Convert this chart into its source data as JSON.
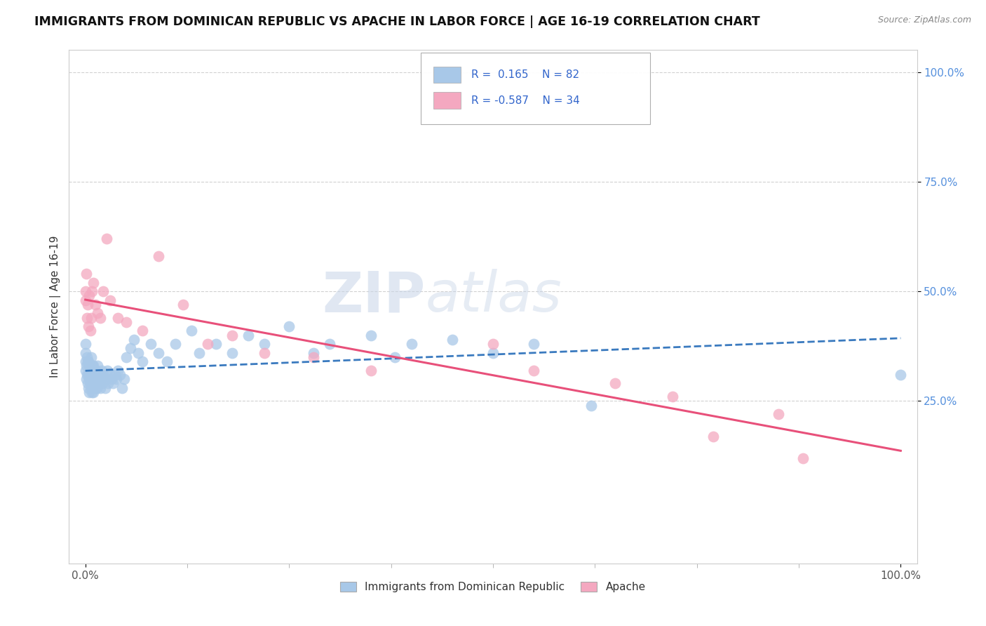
{
  "title": "IMMIGRANTS FROM DOMINICAN REPUBLIC VS APACHE IN LABOR FORCE | AGE 16-19 CORRELATION CHART",
  "source": "Source: ZipAtlas.com",
  "ylabel": "In Labor Force | Age 16-19",
  "xlim": [
    -0.02,
    1.02
  ],
  "ylim": [
    -0.12,
    1.05
  ],
  "blue_R": 0.165,
  "blue_N": 82,
  "pink_R": -0.587,
  "pink_N": 34,
  "blue_color": "#a8c8e8",
  "pink_color": "#f4a8c0",
  "blue_line_color": "#3a7abf",
  "pink_line_color": "#e8507a",
  "watermark_zip_color": "#c8d5e8",
  "watermark_atlas_color": "#c8d5e8",
  "grid_color": "#cccccc",
  "background_color": "#ffffff",
  "blue_scatter_x": [
    0.0,
    0.0,
    0.0,
    0.0,
    0.001,
    0.001,
    0.002,
    0.002,
    0.003,
    0.003,
    0.004,
    0.004,
    0.004,
    0.005,
    0.005,
    0.005,
    0.006,
    0.006,
    0.007,
    0.007,
    0.007,
    0.008,
    0.008,
    0.009,
    0.009,
    0.01,
    0.01,
    0.01,
    0.011,
    0.012,
    0.012,
    0.013,
    0.013,
    0.014,
    0.015,
    0.015,
    0.016,
    0.017,
    0.018,
    0.019,
    0.02,
    0.021,
    0.022,
    0.024,
    0.025,
    0.027,
    0.028,
    0.03,
    0.032,
    0.034,
    0.036,
    0.038,
    0.04,
    0.042,
    0.045,
    0.048,
    0.05,
    0.055,
    0.06,
    0.065,
    0.07,
    0.08,
    0.09,
    0.1,
    0.11,
    0.13,
    0.14,
    0.16,
    0.18,
    0.2,
    0.22,
    0.25,
    0.28,
    0.3,
    0.35,
    0.38,
    0.4,
    0.45,
    0.5,
    0.55,
    0.62,
    1.0
  ],
  "blue_scatter_y": [
    0.32,
    0.34,
    0.36,
    0.38,
    0.3,
    0.33,
    0.31,
    0.35,
    0.29,
    0.34,
    0.28,
    0.31,
    0.34,
    0.27,
    0.3,
    0.33,
    0.29,
    0.32,
    0.28,
    0.31,
    0.35,
    0.27,
    0.3,
    0.29,
    0.33,
    0.27,
    0.3,
    0.33,
    0.29,
    0.28,
    0.31,
    0.29,
    0.32,
    0.28,
    0.3,
    0.33,
    0.29,
    0.31,
    0.28,
    0.3,
    0.32,
    0.29,
    0.31,
    0.28,
    0.3,
    0.32,
    0.29,
    0.31,
    0.3,
    0.29,
    0.31,
    0.3,
    0.32,
    0.31,
    0.28,
    0.3,
    0.35,
    0.37,
    0.39,
    0.36,
    0.34,
    0.38,
    0.36,
    0.34,
    0.38,
    0.41,
    0.36,
    0.38,
    0.36,
    0.4,
    0.38,
    0.42,
    0.36,
    0.38,
    0.4,
    0.35,
    0.38,
    0.39,
    0.36,
    0.38,
    0.24,
    0.31
  ],
  "pink_scatter_x": [
    0.0,
    0.0,
    0.001,
    0.002,
    0.003,
    0.004,
    0.005,
    0.006,
    0.007,
    0.008,
    0.01,
    0.012,
    0.015,
    0.018,
    0.022,
    0.026,
    0.03,
    0.04,
    0.05,
    0.07,
    0.09,
    0.12,
    0.15,
    0.18,
    0.22,
    0.28,
    0.35,
    0.5,
    0.55,
    0.65,
    0.72,
    0.77,
    0.85,
    0.88
  ],
  "pink_scatter_y": [
    0.5,
    0.48,
    0.54,
    0.44,
    0.47,
    0.42,
    0.49,
    0.41,
    0.44,
    0.5,
    0.52,
    0.47,
    0.45,
    0.44,
    0.5,
    0.62,
    0.48,
    0.44,
    0.43,
    0.41,
    0.58,
    0.47,
    0.38,
    0.4,
    0.36,
    0.35,
    0.32,
    0.38,
    0.32,
    0.29,
    0.26,
    0.17,
    0.22,
    0.12
  ]
}
